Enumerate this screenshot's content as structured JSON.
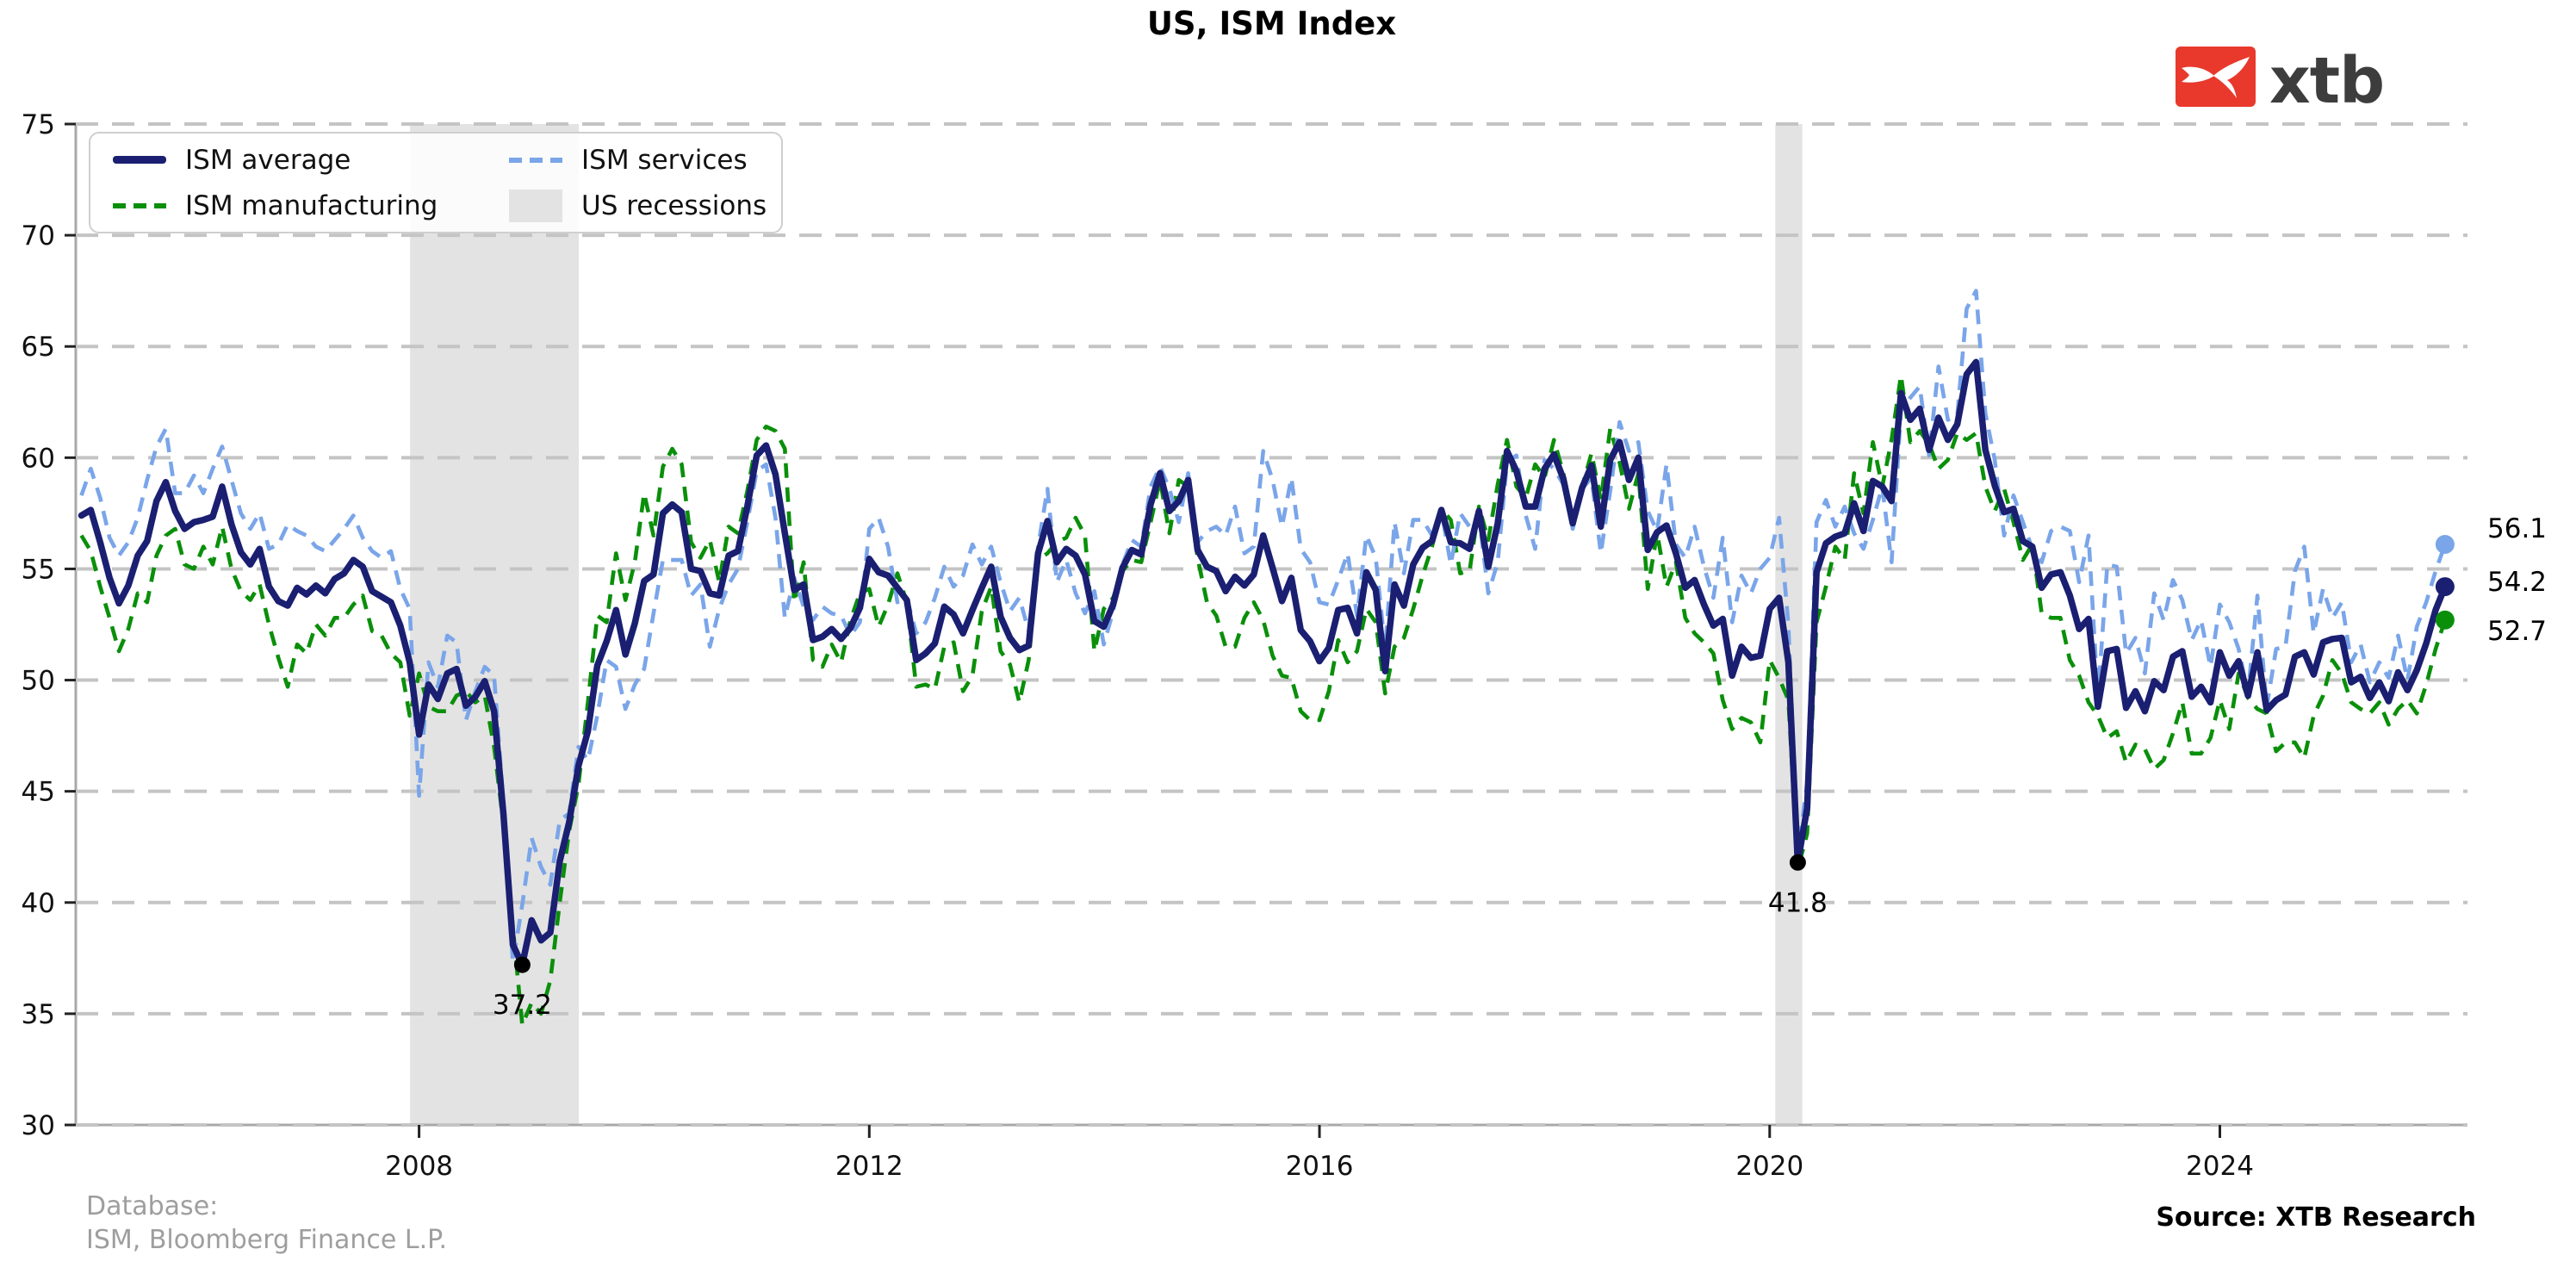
{
  "title": "US, ISM Index",
  "logo": {
    "text": "xtb",
    "brand_red": "#e8392c"
  },
  "legend": {
    "items": [
      {
        "label": "ISM average",
        "swatch": "solid-line",
        "color": "#1a1f71"
      },
      {
        "label": "ISM manufacturing",
        "swatch": "dashed-line",
        "color": "#0a8f0a"
      },
      {
        "label": "ISM services",
        "swatch": "dashed-line",
        "color": "#7aa5e9"
      },
      {
        "label": "US recessions",
        "swatch": "patch",
        "color": "#e3e3e3"
      }
    ]
  },
  "footer": {
    "database_line1": "Database:",
    "database_line2": "ISM, Bloomberg Finance L.P.",
    "source": "Source: XTB Research"
  },
  "chart_data": {
    "type": "line",
    "title": "US, ISM Index",
    "frequency": "monthly",
    "x_start": "2005-01",
    "x_end": "2026-01",
    "xlim_years": [
      2004.95,
      2026.2
    ],
    "ylim": [
      30,
      75
    ],
    "y_ticks": [
      30,
      35,
      40,
      45,
      50,
      55,
      60,
      65,
      70,
      75
    ],
    "x_ticks": [
      {
        "value": 2008,
        "label": "2008"
      },
      {
        "value": 2012,
        "label": "2012"
      },
      {
        "value": 2016,
        "label": "2016"
      },
      {
        "value": 2020,
        "label": "2020"
      },
      {
        "value": 2024,
        "label": "2024"
      }
    ],
    "grid": "horizontal-dashed",
    "grid_color": "#c4c4c4",
    "recessions": [
      {
        "from": 2007.92,
        "to": 2009.42
      },
      {
        "from": 2020.05,
        "to": 2020.29
      }
    ],
    "series_meta": [
      {
        "name": "ISM average",
        "color": "#1a1f71",
        "style": "solid",
        "derived": "mean of manufacturing and services"
      },
      {
        "name": "ISM manufacturing",
        "color": "#0a8f0a",
        "style": "dashed"
      },
      {
        "name": "ISM services",
        "color": "#7aa5e9",
        "style": "dashed"
      }
    ],
    "average_overrides": [
      {
        "date": "2026-01",
        "value": 54.2
      }
    ],
    "manufacturing": {
      "2005": [
        56.5,
        55.8,
        54.2,
        52.8,
        51.3,
        52.3,
        53.9,
        53.5,
        55.6,
        56.5,
        56.8,
        55.2
      ],
      "2006": [
        55.0,
        56.0,
        55.2,
        56.9,
        55.0,
        54.0,
        53.6,
        54.3,
        52.5,
        51.0,
        49.7,
        51.6
      ],
      "2007": [
        51.2,
        52.5,
        52.0,
        52.8,
        52.8,
        53.4,
        53.8,
        52.2,
        52.0,
        51.2,
        50.8,
        48.4
      ],
      "2008": [
        50.3,
        48.8,
        48.6,
        48.6,
        49.3,
        49.5,
        49.0,
        49.3,
        47.0,
        43.5,
        38.9,
        34.5
      ],
      "2009": [
        35.5,
        35.0,
        36.5,
        40.0,
        43.2,
        45.3,
        49.0,
        52.9,
        52.6,
        55.7,
        53.6,
        55.3
      ],
      "2010": [
        58.4,
        56.5,
        59.6,
        60.4,
        59.7,
        56.2,
        55.5,
        56.3,
        54.4,
        56.9,
        56.6,
        58.5
      ],
      "2011": [
        60.8,
        61.4,
        61.2,
        60.4,
        53.5,
        55.3,
        50.9,
        50.6,
        51.6,
        50.8,
        52.7,
        53.9
      ],
      "2012": [
        54.1,
        52.4,
        53.4,
        54.8,
        53.5,
        49.7,
        49.8,
        49.6,
        51.5,
        51.7,
        49.5,
        50.2
      ],
      "2013": [
        53.1,
        54.2,
        51.3,
        50.7,
        49.0,
        50.9,
        55.4,
        55.7,
        56.2,
        56.4,
        57.3,
        56.5
      ],
      "2014": [
        51.3,
        53.2,
        53.7,
        54.9,
        55.4,
        55.3,
        57.1,
        59.0,
        56.6,
        59.0,
        58.7,
        55.5
      ],
      "2015": [
        53.5,
        52.9,
        51.5,
        51.5,
        52.8,
        53.5,
        52.7,
        51.1,
        50.2,
        50.1,
        48.6,
        48.2
      ],
      "2016": [
        48.2,
        49.5,
        51.8,
        50.8,
        51.3,
        53.2,
        52.6,
        49.4,
        51.5,
        51.9,
        53.2,
        54.7
      ],
      "2017": [
        56.0,
        57.7,
        57.2,
        54.8,
        54.9,
        57.8,
        56.3,
        58.8,
        60.8,
        58.7,
        58.2,
        59.7
      ],
      "2018": [
        59.1,
        60.8,
        59.3,
        57.3,
        58.7,
        60.2,
        58.1,
        61.3,
        59.8,
        57.7,
        59.3,
        54.1
      ],
      "2019": [
        56.6,
        54.2,
        55.3,
        52.8,
        52.1,
        51.7,
        51.2,
        49.1,
        47.8,
        48.3,
        48.1,
        47.2
      ],
      "2020": [
        50.9,
        50.1,
        49.1,
        41.5,
        43.1,
        52.6,
        54.2,
        56.0,
        55.4,
        59.3,
        57.5,
        60.7
      ],
      "2021": [
        58.7,
        60.8,
        63.7,
        60.7,
        61.2,
        60.6,
        59.5,
        59.9,
        61.1,
        60.8,
        61.1,
        58.7
      ],
      "2022": [
        57.6,
        58.6,
        57.1,
        55.4,
        56.1,
        53.0,
        52.8,
        52.8,
        50.9,
        50.2,
        49.0,
        48.4
      ],
      "2023": [
        47.4,
        47.7,
        46.3,
        47.1,
        46.9,
        46.0,
        46.4,
        47.6,
        49.0,
        46.7,
        46.7,
        47.4
      ],
      "2024": [
        49.1,
        47.8,
        50.3,
        49.2,
        48.7,
        48.5,
        46.8,
        47.2,
        47.2,
        46.5,
        48.4,
        49.3
      ],
      "2025": [
        50.9,
        50.3,
        49.0,
        48.7,
        48.5,
        49.0,
        48.0,
        48.7,
        49.1,
        48.5,
        49.8,
        51.4
      ],
      "2026": [
        52.7
      ]
    },
    "services": {
      "2005": [
        58.3,
        59.5,
        58.2,
        56.4,
        55.6,
        56.2,
        57.3,
        59.0,
        60.5,
        61.3,
        58.4,
        58.4
      ],
      "2006": [
        59.2,
        58.4,
        59.5,
        60.5,
        59.0,
        57.5,
        56.8,
        57.5,
        55.9,
        56.1,
        57.0,
        56.7
      ],
      "2007": [
        56.5,
        56.0,
        55.8,
        56.3,
        56.8,
        57.4,
        56.4,
        55.8,
        55.5,
        55.8,
        54.1,
        53.2
      ],
      "2008": [
        44.8,
        50.8,
        49.7,
        52.0,
        51.7,
        48.2,
        49.5,
        50.6,
        50.2,
        44.4,
        37.3,
        39.9
      ],
      "2009": [
        42.9,
        41.6,
        40.8,
        43.7,
        44.0,
        47.0,
        46.4,
        48.4,
        50.9,
        50.6,
        48.7,
        49.8
      ],
      "2010": [
        50.5,
        53.0,
        55.4,
        55.4,
        55.4,
        53.8,
        54.3,
        51.5,
        53.2,
        54.3,
        55.0,
        57.1
      ],
      "2011": [
        59.4,
        59.7,
        57.3,
        52.8,
        54.6,
        53.3,
        52.7,
        53.3,
        53.0,
        52.9,
        52.0,
        52.6
      ],
      "2012": [
        56.8,
        57.3,
        56.0,
        53.5,
        53.7,
        52.1,
        52.6,
        53.7,
        55.1,
        54.2,
        54.7,
        56.1
      ],
      "2013": [
        55.2,
        56.0,
        54.4,
        53.1,
        53.7,
        52.2,
        56.0,
        58.6,
        54.4,
        55.4,
        53.9,
        53.0
      ],
      "2014": [
        54.0,
        51.6,
        53.1,
        55.2,
        56.3,
        56.0,
        58.7,
        59.6,
        58.6,
        57.1,
        59.3,
        56.2
      ],
      "2015": [
        56.7,
        56.9,
        56.5,
        57.8,
        55.7,
        56.0,
        60.3,
        59.0,
        56.9,
        59.1,
        55.9,
        55.3
      ],
      "2016": [
        53.5,
        53.4,
        54.5,
        55.7,
        52.9,
        56.5,
        55.5,
        51.4,
        57.1,
        54.8,
        57.2,
        57.2
      ],
      "2017": [
        56.5,
        57.6,
        55.2,
        57.5,
        56.9,
        57.4,
        53.9,
        55.3,
        59.8,
        60.1,
        57.4,
        55.9
      ],
      "2018": [
        59.9,
        59.5,
        58.8,
        56.8,
        58.6,
        59.1,
        55.7,
        58.5,
        61.6,
        60.3,
        60.7,
        57.6
      ],
      "2019": [
        56.7,
        59.7,
        56.1,
        55.5,
        56.9,
        55.1,
        53.7,
        56.4,
        52.6,
        54.7,
        53.9,
        55.0
      ],
      "2020": [
        55.5,
        57.3,
        52.5,
        42.1,
        45.4,
        57.1,
        58.1,
        56.9,
        57.8,
        56.6,
        55.9,
        57.2
      ],
      "2021": [
        58.7,
        55.3,
        62.1,
        62.7,
        63.2,
        60.1,
        64.1,
        61.7,
        61.9,
        66.7,
        67.5,
        62.0
      ],
      "2022": [
        59.9,
        56.5,
        58.3,
        57.1,
        55.9,
        55.3,
        56.7,
        56.9,
        56.7,
        54.4,
        56.5,
        49.2
      ],
      "2023": [
        55.2,
        55.1,
        51.2,
        51.9,
        50.3,
        53.9,
        52.7,
        54.5,
        53.6,
        51.8,
        52.7,
        50.6
      ],
      "2024": [
        53.4,
        52.6,
        51.4,
        49.4,
        53.8,
        48.8,
        51.4,
        51.5,
        54.9,
        56.0,
        52.1,
        54.1
      ],
      "2025": [
        52.8,
        53.5,
        50.8,
        51.6,
        49.9,
        50.8,
        50.1,
        52.0,
        50.0,
        52.4,
        53.5,
        54.9
      ],
      "2026": [
        56.1
      ]
    },
    "annotations": [
      {
        "label": "37.2",
        "value": 37.2,
        "series": "ISM average",
        "date": "2008-12"
      },
      {
        "label": "41.8",
        "value": 41.8,
        "series": "ISM average",
        "date": "2020-04"
      }
    ],
    "end_labels": [
      {
        "label": "56.1",
        "value": 56.1,
        "series": "ISM services"
      },
      {
        "label": "54.2",
        "value": 54.2,
        "series": "ISM average"
      },
      {
        "label": "52.7",
        "value": 52.7,
        "series": "ISM manufacturing"
      }
    ]
  }
}
